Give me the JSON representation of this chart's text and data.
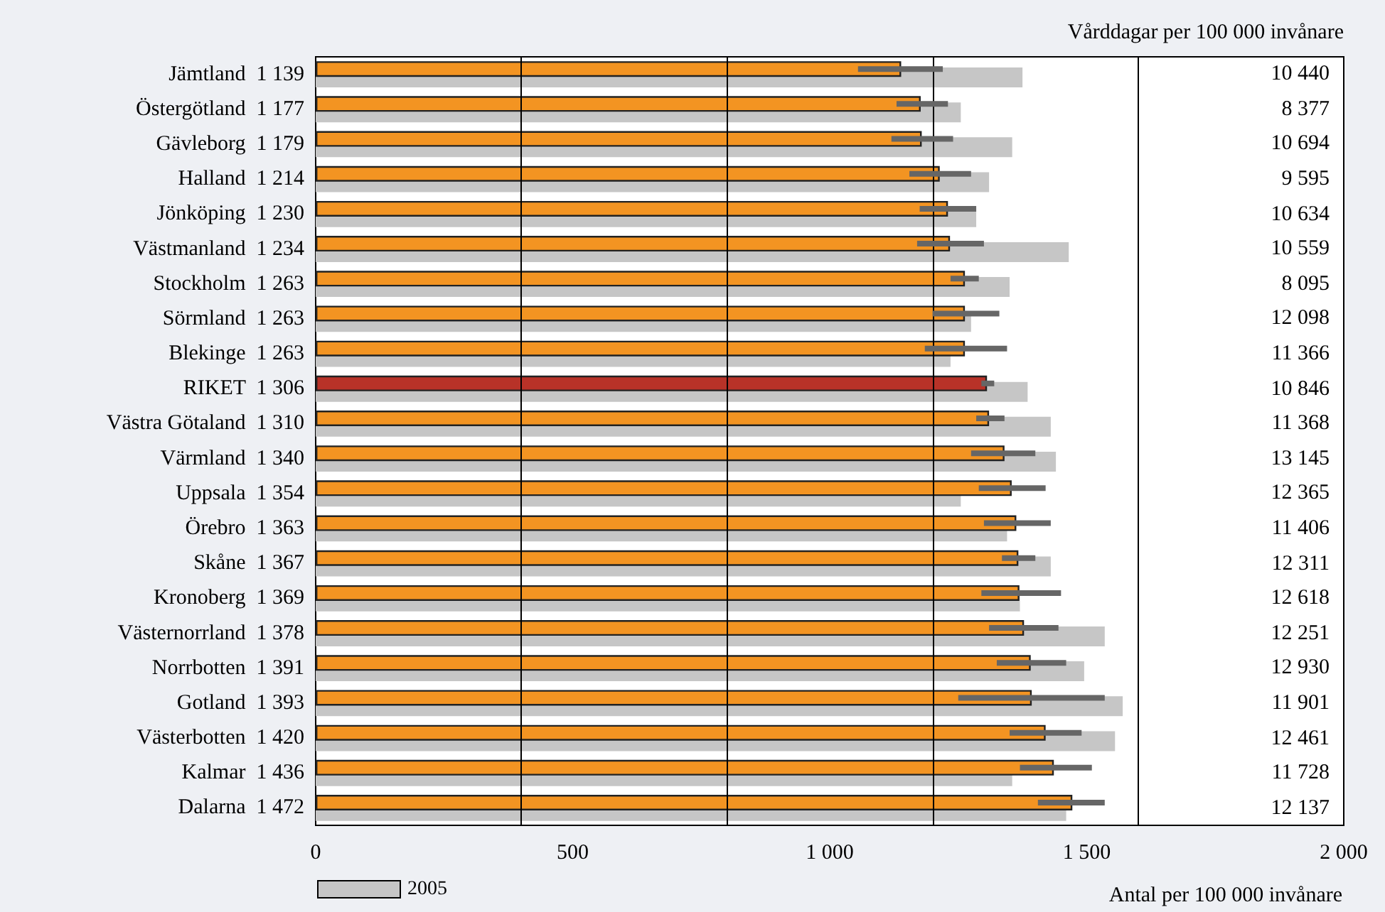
{
  "chart_data": [
    {
      "type": "bar",
      "orientation": "horizontal",
      "xlabel": "Antal per 100 000 invånare",
      "categories": [
        "Jämtland",
        "Östergötland",
        "Gävleborg",
        "Halland",
        "Jönköping",
        "Västmanland",
        "Stockholm",
        "Sörmland",
        "Blekinge",
        "RIKET",
        "Västra Götaland",
        "Värmland",
        "Uppsala",
        "Örebro",
        "Skåne",
        "Kronoberg",
        "Västernorrland",
        "Norrbotten",
        "Gotland",
        "Västerbotten",
        "Kalmar",
        "Dalarna"
      ],
      "series": [
        {
          "color": "#f39422",
          "colors": [
            "#f39422",
            "#f39422",
            "#f39422",
            "#f39422",
            "#f39422",
            "#f39422",
            "#f39422",
            "#f39422",
            "#f39422",
            "#b83228",
            "#f39422",
            "#f39422",
            "#f39422",
            "#f39422",
            "#f39422",
            "#f39422",
            "#f39422",
            "#f39422",
            "#f39422",
            "#f39422",
            "#f39422",
            "#f39422"
          ],
          "values": [
            1139,
            1177,
            1179,
            1214,
            1230,
            1234,
            1263,
            1263,
            1263,
            1306,
            1310,
            1340,
            1354,
            1363,
            1367,
            1369,
            1378,
            1391,
            1393,
            1420,
            1436,
            1472
          ],
          "value_labels": [
            "1 139",
            "1 177",
            "1 179",
            "1 214",
            "1 230",
            "1 234",
            "1 263",
            "1 263",
            "1 263",
            "1 306",
            "1 310",
            "1 340",
            "1 354",
            "1 363",
            "1 367",
            "1 369",
            "1 378",
            "1 391",
            "1 393",
            "1 420",
            "1 436",
            "1 472"
          ],
          "errors": [
            [
              1055,
              1220
            ],
            [
              1130,
              1230
            ],
            [
              1120,
              1240
            ],
            [
              1155,
              1275
            ],
            [
              1175,
              1285
            ],
            [
              1170,
              1300
            ],
            [
              1235,
              1290
            ],
            [
              1200,
              1330
            ],
            [
              1185,
              1345
            ],
            [
              1295,
              1320
            ],
            [
              1285,
              1340
            ],
            [
              1275,
              1400
            ],
            [
              1290,
              1420
            ],
            [
              1300,
              1430
            ],
            [
              1335,
              1400
            ],
            [
              1295,
              1450
            ],
            [
              1310,
              1445
            ],
            [
              1325,
              1460
            ],
            [
              1250,
              1535
            ],
            [
              1350,
              1490
            ],
            [
              1370,
              1510
            ],
            [
              1405,
              1535
            ]
          ]
        },
        {
          "name": "2005",
          "color": "#c6c6c6",
          "values": [
            1375,
            1255,
            1355,
            1310,
            1285,
            1465,
            1350,
            1275,
            1235,
            1385,
            1430,
            1440,
            1255,
            1345,
            1430,
            1370,
            1535,
            1495,
            1570,
            1555,
            1355,
            1460
          ]
        }
      ],
      "xlim": [
        0,
        2000
      ],
      "xticks": [
        0,
        {
          "value": 500,
          "label": "500"
        },
        {
          "value": 1000,
          "label": "1 000"
        },
        {
          "value": 1500,
          "label": "1 500"
        },
        {
          "value": 2000,
          "label": "2 000"
        }
      ],
      "legend": "bottom left",
      "grid": false,
      "ref_lines": [
        {
          "axis": "x",
          "value": 400,
          "color": "#000000"
        },
        {
          "axis": "x",
          "value": 800,
          "color": "#000000"
        },
        {
          "axis": "x",
          "value": 1200,
          "color": "#000000"
        },
        {
          "axis": "x",
          "value": 1600,
          "color": "#000000"
        }
      ]
    },
    {
      "type": "other",
      "title": "Vårddagar per 100 000 invånare",
      "value_labels": [
        "10 440",
        "8 377",
        "10 694",
        "9 595",
        "10 634",
        "10 559",
        "8 095",
        "12 098",
        "11 366",
        "10 846",
        "11 368",
        "13 145",
        "12 365",
        "11 406",
        "12 311",
        "12 618",
        "12 251",
        "12 930",
        "11 901",
        "12 461",
        "11 728",
        "12 137"
      ]
    }
  ]
}
